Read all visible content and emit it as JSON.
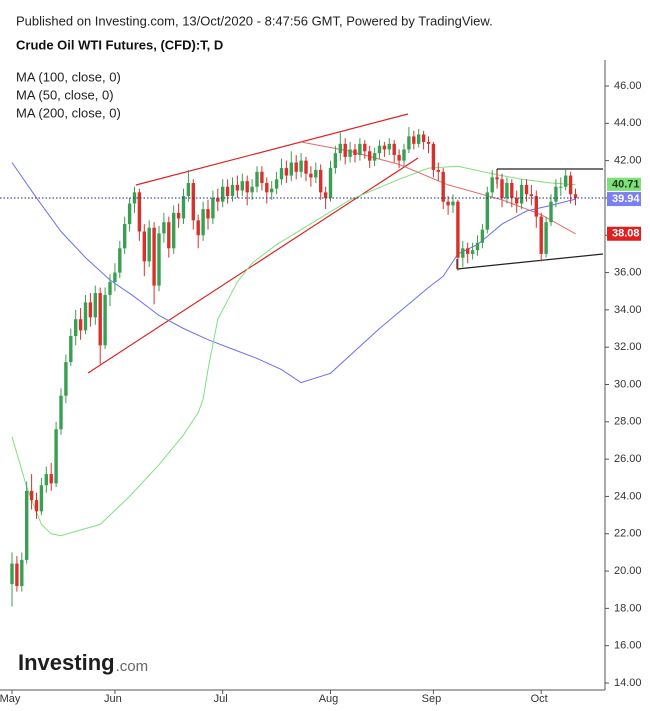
{
  "chart_data": {
    "type": "candlestick",
    "header": "Published on Investing.com, 13/Oct/2020 - 8:47:56 GMT, Powered by TradingView.",
    "title": "Crude Oil WTI Futures, (CFD):T, D",
    "logo": {
      "name": "Investing",
      "suffix": ".com"
    },
    "categories": [
      "May",
      null,
      null,
      null,
      null,
      null,
      null,
      null,
      null,
      null,
      null,
      null,
      null,
      null,
      null,
      null,
      null,
      null,
      null,
      null,
      null,
      "Jun",
      null,
      null,
      null,
      null,
      null,
      null,
      null,
      null,
      null,
      null,
      null,
      null,
      null,
      null,
      null,
      null,
      null,
      null,
      null,
      null,
      null,
      "Jul",
      null,
      null,
      null,
      null,
      null,
      null,
      null,
      null,
      null,
      null,
      null,
      null,
      null,
      null,
      null,
      null,
      null,
      null,
      null,
      null,
      null,
      "Aug",
      null,
      null,
      null,
      null,
      null,
      null,
      null,
      null,
      null,
      null,
      null,
      null,
      null,
      null,
      null,
      null,
      null,
      null,
      null,
      null,
      "Sep",
      null,
      null,
      null,
      null,
      null,
      null,
      null,
      null,
      null,
      null,
      null,
      null,
      null,
      null,
      null,
      null,
      null,
      null,
      null,
      null,
      null,
      "Oct",
      null,
      null,
      null,
      null,
      null,
      null,
      null
    ],
    "open": [
      19.3,
      20.4,
      19.2,
      20.6,
      24.3,
      23.8,
      23.2,
      24.6,
      25.2,
      24.7,
      27.6,
      29.4,
      31.2,
      32.6,
      33.5,
      32.9,
      34.4,
      33.6,
      34.9,
      32.1,
      34.8,
      35.5,
      36.0,
      37.3,
      38.6,
      39.7,
      40.3,
      38.2,
      36.6,
      38.4,
      35.3,
      38.1,
      38.7,
      37.3,
      39.2,
      38.9,
      40.1,
      40.8,
      38.8,
      38.0,
      39.4,
      38.9,
      40.0,
      39.8,
      40.6,
      40.1,
      40.7,
      40.4,
      40.9,
      40.3,
      40.6,
      41.4,
      40.8,
      40.3,
      40.5,
      41.0,
      41.6,
      41.2,
      41.9,
      41.4,
      42.0,
      41.3,
      41.1,
      41.5,
      40.3,
      40.0,
      41.6,
      42.4,
      42.9,
      42.2,
      42.6,
      42.3,
      42.9,
      42.5,
      42.0,
      42.4,
      42.8,
      42.6,
      42.9,
      42.3,
      42.0,
      42.6,
      43.3,
      42.9,
      43.4,
      43.0,
      42.9,
      41.5,
      41.4,
      39.8,
      39.6,
      39.8,
      36.8,
      37.3,
      37.0,
      37.2,
      37.6,
      38.3,
      40.3,
      41.1,
      41.0,
      40.0,
      40.8,
      40.0,
      39.7,
      40.7,
      40.2,
      40.1,
      39.0,
      37.0,
      38.7,
      39.8,
      40.6,
      40.6,
      41.2,
      40.2
    ],
    "high": [
      21.0,
      20.8,
      21.0,
      24.8,
      25.2,
      24.2,
      25.0,
      25.6,
      25.8,
      28.0,
      29.8,
      31.6,
      33.0,
      34.0,
      34.1,
      34.8,
      34.9,
      35.3,
      35.2,
      35.2,
      35.9,
      36.5,
      37.7,
      39.0,
      40.0,
      40.6,
      40.5,
      38.6,
      38.8,
      38.7,
      38.5,
      39.2,
      39.0,
      39.6,
      39.7,
      40.5,
      41.5,
      41.0,
      39.1,
      39.8,
      39.9,
      40.4,
      40.5,
      41.0,
      41.0,
      41.1,
      41.2,
      41.3,
      41.2,
      41.0,
      41.7,
      41.7,
      41.1,
      40.9,
      41.4,
      42.1,
      42.0,
      42.5,
      42.3,
      42.4,
      42.2,
      41.7,
      41.9,
      41.8,
      40.6,
      42.0,
      42.8,
      43.5,
      43.2,
      43.0,
      42.9,
      43.2,
      43.1,
      42.8,
      42.7,
      43.1,
      43.0,
      43.2,
      43.1,
      42.6,
      42.9,
      43.8,
      43.6,
      43.7,
      43.6,
      43.3,
      43.0,
      41.9,
      41.6,
      40.1,
      40.2,
      39.9,
      37.7,
      37.6,
      37.6,
      38.0,
      38.6,
      40.6,
      41.5,
      41.5,
      41.3,
      41.1,
      41.0,
      40.4,
      41.0,
      41.0,
      40.7,
      40.4,
      39.2,
      39.0,
      40.2,
      41.0,
      41.1,
      41.5,
      41.4,
      40.5
    ],
    "low": [
      18.1,
      18.9,
      18.9,
      20.4,
      23.3,
      22.8,
      23.0,
      24.2,
      24.3,
      24.5,
      27.3,
      29.0,
      31.0,
      32.1,
      32.4,
      32.7,
      33.1,
      33.2,
      31.1,
      31.9,
      34.2,
      35.0,
      35.7,
      37.0,
      38.2,
      39.2,
      37.7,
      35.8,
      36.3,
      34.3,
      35.0,
      37.6,
      36.8,
      37.0,
      38.4,
      38.6,
      39.8,
      38.3,
      37.3,
      37.7,
      38.3,
      38.6,
      39.3,
      39.5,
      39.7,
      39.8,
      40.0,
      40.1,
      39.6,
      39.9,
      40.3,
      40.4,
      39.7,
      39.9,
      40.2,
      40.7,
      40.8,
      40.9,
      41.0,
      41.1,
      40.9,
      40.6,
      40.8,
      39.9,
      39.4,
      39.8,
      41.3,
      42.0,
      41.8,
      41.9,
      41.9,
      42.0,
      42.1,
      41.6,
      41.7,
      42.1,
      42.2,
      42.3,
      41.9,
      41.6,
      41.7,
      42.4,
      42.6,
      42.7,
      42.6,
      42.4,
      41.1,
      40.9,
      39.4,
      39.1,
      39.2,
      36.1,
      36.3,
      36.5,
      36.7,
      36.9,
      37.3,
      38.1,
      40.0,
      40.5,
      39.5,
      39.7,
      39.5,
      39.2,
      39.4,
      39.8,
      39.6,
      38.4,
      36.6,
      36.8,
      38.5,
      39.5,
      40.1,
      40.4,
      39.7,
      39.6
    ],
    "close": [
      20.4,
      19.2,
      20.6,
      24.3,
      23.8,
      23.2,
      24.6,
      25.2,
      24.7,
      27.6,
      29.4,
      31.2,
      32.6,
      33.5,
      32.9,
      34.4,
      33.6,
      34.9,
      32.1,
      34.8,
      35.5,
      36.0,
      37.3,
      38.6,
      39.7,
      40.3,
      38.2,
      36.6,
      38.4,
      35.3,
      38.1,
      38.7,
      37.3,
      39.2,
      38.9,
      40.1,
      40.8,
      38.8,
      38.0,
      39.4,
      38.9,
      40.0,
      39.8,
      40.6,
      40.1,
      40.7,
      40.4,
      40.9,
      40.3,
      40.6,
      41.4,
      40.8,
      40.3,
      40.5,
      41.0,
      41.6,
      41.2,
      41.9,
      41.4,
      42.0,
      41.3,
      41.1,
      41.5,
      40.3,
      40.0,
      41.6,
      42.4,
      42.9,
      42.2,
      42.6,
      42.3,
      42.9,
      42.5,
      42.0,
      42.4,
      42.8,
      42.6,
      42.9,
      42.3,
      42.0,
      42.6,
      43.3,
      42.9,
      43.4,
      43.0,
      42.9,
      41.5,
      41.4,
      39.8,
      39.6,
      39.8,
      36.8,
      37.3,
      37.0,
      37.2,
      37.6,
      38.3,
      40.3,
      41.1,
      41.0,
      40.0,
      40.8,
      40.0,
      39.7,
      40.7,
      40.2,
      40.1,
      39.0,
      37.0,
      38.7,
      39.8,
      40.6,
      40.6,
      41.2,
      40.2,
      40.0
    ],
    "up_color": "#3a9f52",
    "down_color": "#d8312c",
    "series": [
      {
        "name": "MA (100, close, 0)",
        "color": "#6b6ff0",
        "x": [
          0,
          5,
          10,
          15,
          20,
          25,
          30,
          35,
          40,
          45,
          50,
          55,
          59,
          65,
          70,
          75,
          80,
          85,
          88,
          90,
          91,
          95,
          100,
          105,
          110,
          115
        ],
        "values": [
          41.9,
          40.0,
          38.2,
          36.8,
          35.6,
          34.7,
          33.7,
          33.0,
          32.4,
          31.9,
          31.4,
          30.8,
          30.1,
          30.6,
          31.8,
          33.0,
          34.1,
          35.2,
          35.8,
          36.6,
          37.0,
          37.5,
          38.6,
          39.3,
          39.6,
          39.94
        ]
      },
      {
        "name": "MA (50, close, 0)",
        "color": "#7fe07f",
        "x": [
          0,
          3,
          6,
          8,
          10,
          18,
          24,
          30,
          35,
          38,
          39,
          40,
          42,
          46,
          49,
          54,
          59,
          69,
          79,
          85,
          91,
          98,
          104,
          110,
          115
        ],
        "values": [
          27.2,
          24.5,
          22.5,
          22.0,
          21.9,
          22.5,
          24.0,
          25.7,
          27.3,
          28.5,
          29.2,
          30.8,
          33.5,
          35.5,
          36.5,
          37.5,
          38.3,
          39.9,
          41.0,
          41.6,
          41.7,
          41.3,
          41.0,
          40.8,
          40.71
        ]
      },
      {
        "name": "MA (200, close, 0)",
        "color": "#e56a6a",
        "x": [
          59,
          69,
          79,
          89,
          100,
          108,
          115
        ],
        "values": [
          43.0,
          42.5,
          41.8,
          40.7,
          39.9,
          39.1,
          38.08
        ]
      }
    ],
    "price_labels": [
      {
        "value": 40.71,
        "label": "40.71",
        "color": "#7ee07a"
      },
      {
        "value": 40,
        "label": "40.00",
        "color": "#ffffff"
      },
      {
        "value": 39.94,
        "label": "39.94",
        "color": "#7b7ff2"
      },
      {
        "value": 38.08,
        "label": "38.08",
        "color": "#e0201f"
      }
    ],
    "last_price": 40,
    "ylim": [
      14,
      46
    ],
    "yticks": [
      {
        "value": 14,
        "label": "14.00"
      },
      {
        "value": 16,
        "label": "16.00"
      },
      {
        "value": 18,
        "label": "18.00"
      },
      {
        "value": 20,
        "label": "20.00"
      },
      {
        "value": 22,
        "label": "22.00"
      },
      {
        "value": 24,
        "label": "24.00"
      },
      {
        "value": 26,
        "label": "26.00"
      },
      {
        "value": 28,
        "label": "28.00"
      },
      {
        "value": 30,
        "label": "30.00"
      },
      {
        "value": 32,
        "label": "32.00"
      },
      {
        "value": 34,
        "label": "34.00"
      },
      {
        "value": 36,
        "label": "36.00"
      },
      {
        "value": 38,
        "label": "38.00"
      },
      {
        "value": 40,
        "label": "40.00"
      },
      {
        "value": 42,
        "label": "42.00"
      },
      {
        "value": 44,
        "label": "44.00"
      },
      {
        "value": 46,
        "label": "46.00"
      }
    ]
  }
}
